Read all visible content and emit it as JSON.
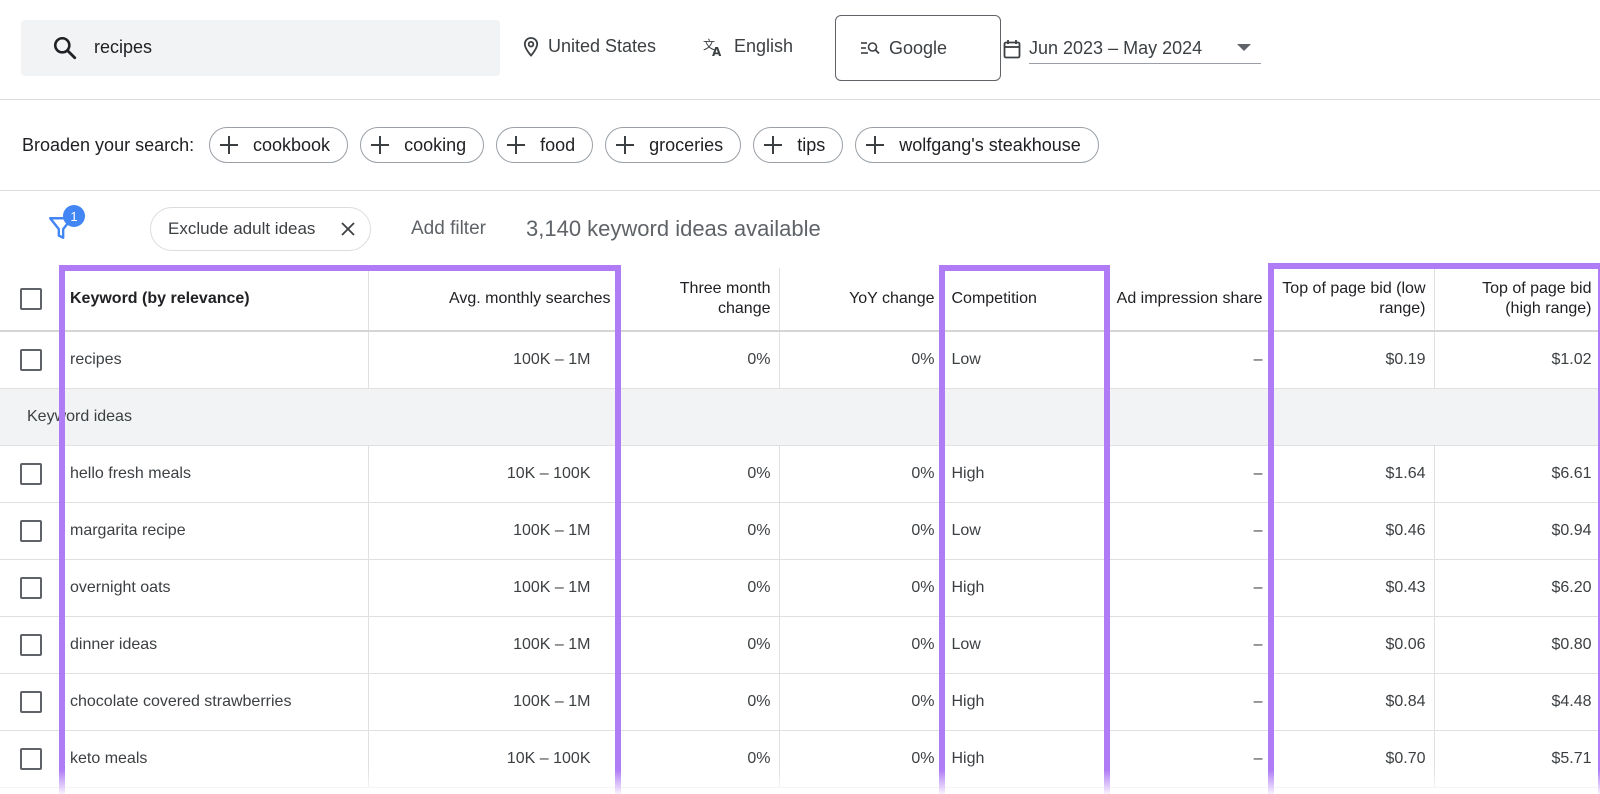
{
  "search": {
    "value": "recipes"
  },
  "location": "United States",
  "language": "English",
  "engine": "Google",
  "date_range": "Jun 2023 – May 2024",
  "broaden": {
    "label": "Broaden your search:",
    "chips": [
      "cookbook",
      "cooking",
      "food",
      "groceries",
      "tips",
      "wolfgang's steakhouse"
    ]
  },
  "filters": {
    "badge_count": "1",
    "exclude_chip": "Exclude adult ideas",
    "add_filter": "Add filter",
    "ideas_count": "3,140 keyword ideas available"
  },
  "table": {
    "headers": {
      "keyword": "Keyword (by relevance)",
      "avg": "Avg. monthly searches",
      "three_month": "Three month change",
      "yoy": "YoY change",
      "competition": "Competition",
      "ad_share": "Ad impression share",
      "bid_low": "Top of page bid (low range)",
      "bid_high": "Top of page bid (high range)"
    },
    "main_row": {
      "keyword": "recipes",
      "avg": "100K – 1M",
      "three_month": "0%",
      "yoy": "0%",
      "competition": "Low",
      "ad_share": "–",
      "bid_low": "$0.19",
      "bid_high": "$1.02"
    },
    "group_label": "Keyword ideas",
    "rows": [
      {
        "keyword": "hello fresh meals",
        "avg": "10K – 100K",
        "three_month": "0%",
        "yoy": "0%",
        "competition": "High",
        "ad_share": "–",
        "bid_low": "$1.64",
        "bid_high": "$6.61"
      },
      {
        "keyword": "margarita recipe",
        "avg": "100K – 1M",
        "three_month": "0%",
        "yoy": "0%",
        "competition": "Low",
        "ad_share": "–",
        "bid_low": "$0.46",
        "bid_high": "$0.94"
      },
      {
        "keyword": "overnight oats",
        "avg": "100K – 1M",
        "three_month": "0%",
        "yoy": "0%",
        "competition": "High",
        "ad_share": "–",
        "bid_low": "$0.43",
        "bid_high": "$6.20"
      },
      {
        "keyword": "dinner ideas",
        "avg": "100K – 1M",
        "three_month": "0%",
        "yoy": "0%",
        "competition": "Low",
        "ad_share": "–",
        "bid_low": "$0.06",
        "bid_high": "$0.80"
      },
      {
        "keyword": "chocolate covered strawberries",
        "avg": "100K – 1M",
        "three_month": "0%",
        "yoy": "0%",
        "competition": "High",
        "ad_share": "–",
        "bid_low": "$0.84",
        "bid_high": "$4.48"
      },
      {
        "keyword": "keto meals",
        "avg": "10K – 100K",
        "three_month": "0%",
        "yoy": "0%",
        "competition": "High",
        "ad_share": "–",
        "bid_low": "$0.70",
        "bid_high": "$5.71"
      }
    ]
  },
  "colors": {
    "highlight": "#b07cf5",
    "badge": "#4285f4"
  },
  "icons": [
    "search-icon",
    "location-pin-icon",
    "translate-icon",
    "search-engine-icon",
    "calendar-icon",
    "chevron-down-icon",
    "plus-icon",
    "filter-icon",
    "close-icon"
  ]
}
